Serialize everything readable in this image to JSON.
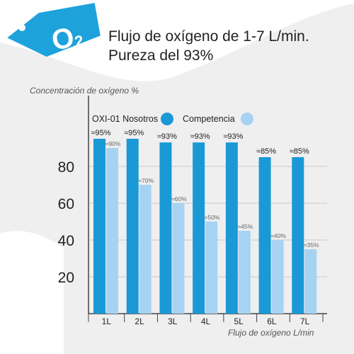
{
  "badge": {
    "text": "O",
    "subscript": "2",
    "color": "#1ea2dc"
  },
  "heading": {
    "line1": "Flujo de oxígeno de 1-7 L/min.",
    "line2": "Pureza del 93%"
  },
  "colors": {
    "ours": "#1a99d6",
    "competitor": "#a7d3f2",
    "background_shape": "#efefef"
  },
  "chart_data": {
    "type": "bar",
    "ylabel": "Concentración de oxígeno %",
    "xlabel": "Flujo de oxígeno L/min",
    "categories": [
      "1L",
      "2L",
      "3L",
      "4L",
      "5L",
      "6L",
      "7L"
    ],
    "yticks": [
      "20",
      "40",
      "60",
      "80"
    ],
    "ylim": [
      0,
      100
    ],
    "grid": true,
    "legend": "top",
    "series": [
      {
        "name": "OXI-01 Nosotros",
        "values": [
          95,
          95,
          93,
          93,
          93,
          85,
          85
        ],
        "labels": [
          "≈95%",
          "≈95%",
          "≈93%",
          "≈93%",
          "≈93%",
          "≈85%",
          "≈85%"
        ]
      },
      {
        "name": "Competencia",
        "values": [
          90,
          70,
          60,
          50,
          45,
          40,
          35
        ],
        "labels": [
          "≈90%",
          "≈70%",
          "≈60%",
          "≈50%",
          "≈45%",
          "≈40%",
          "≈35%"
        ]
      }
    ]
  }
}
